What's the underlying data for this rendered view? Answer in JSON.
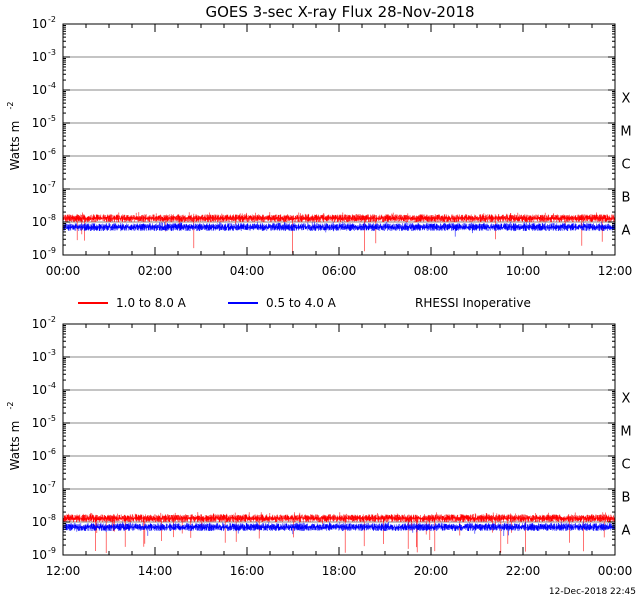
{
  "title": "GOES 3-sec X-ray Flux   28-Nov-2018",
  "footer_timestamp": "12-Dec-2018 22:45",
  "legend": {
    "red_label": "1.0 to 8.0 A",
    "blue_label": "0.5 to 4.0 A",
    "note": "RHESSI Inoperative",
    "red_color": "#ff0000",
    "blue_color": "#0000ff"
  },
  "flare_classes": [
    "X",
    "M",
    "C",
    "B",
    "A"
  ],
  "chart_data": [
    {
      "type": "line",
      "ylabel": "Watts m",
      "ylabel_exp": "-2",
      "yscale": "log",
      "ylim": [
        1e-09,
        0.01
      ],
      "ytick_base": "10",
      "ytick_exponents": [
        "-2",
        "-3",
        "-4",
        "-5",
        "-6",
        "-7",
        "-8",
        "-9"
      ],
      "xlim_hours": [
        0,
        12
      ],
      "xticks": [
        "00:00",
        "02:00",
        "04:00",
        "06:00",
        "08:00",
        "10:00",
        "12:00"
      ],
      "grid": true,
      "series": [
        {
          "name": "1.0 to 8.0 A",
          "color": "#ff0000",
          "baseline": 1.3e-08,
          "upper_spike_max": 2e-08,
          "lower_dip_min": 1e-09
        },
        {
          "name": "0.5 to 4.0 A",
          "color": "#0000ff",
          "baseline": 7e-09,
          "upper_spike_max": 1e-08,
          "lower_dip_min": 3.5e-09
        }
      ]
    },
    {
      "type": "line",
      "ylabel": "Watts m",
      "ylabel_exp": "-2",
      "yscale": "log",
      "ylim": [
        1e-09,
        0.01
      ],
      "ytick_base": "10",
      "ytick_exponents": [
        "-2",
        "-3",
        "-4",
        "-5",
        "-6",
        "-7",
        "-8",
        "-9"
      ],
      "xlim_hours": [
        12,
        24
      ],
      "xticks": [
        "12:00",
        "14:00",
        "16:00",
        "18:00",
        "20:00",
        "22:00",
        "00:00"
      ],
      "grid": true,
      "series": [
        {
          "name": "1.0 to 8.0 A",
          "color": "#ff0000",
          "baseline": 1.3e-08,
          "upper_spike_max": 2e-08,
          "lower_dip_min": 1e-09
        },
        {
          "name": "0.5 to 4.0 A",
          "color": "#0000ff",
          "baseline": 7e-09,
          "upper_spike_max": 1e-08,
          "lower_dip_min": 3.5e-09
        }
      ]
    }
  ]
}
